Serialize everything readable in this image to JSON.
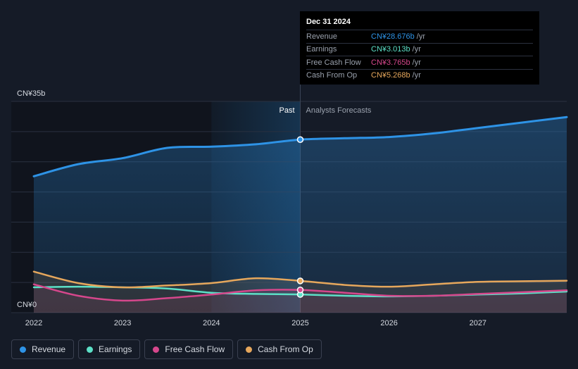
{
  "chart_data": {
    "type": "line",
    "x_ticks": [
      "2022",
      "2023",
      "2024",
      "2025",
      "2026",
      "2027"
    ],
    "xlim": [
      2022,
      2028
    ],
    "ylim": [
      0,
      35
    ],
    "y_top_label": "CN¥35b",
    "y_bottom_label": "CN¥0",
    "past_label": "Past",
    "forecast_label": "Analysts Forecasts",
    "divider_x": 2025.0,
    "highlight_from": 2024.0,
    "series": [
      {
        "name": "Revenue",
        "color": "#2e93e6",
        "fill": true,
        "points": [
          [
            2022.0,
            22.6
          ],
          [
            2022.5,
            24.6
          ],
          [
            2023.0,
            25.6
          ],
          [
            2023.5,
            27.3
          ],
          [
            2024.0,
            27.5
          ],
          [
            2024.5,
            27.9
          ],
          [
            2025.0,
            28.676
          ],
          [
            2025.5,
            28.9
          ],
          [
            2026.0,
            29.1
          ],
          [
            2026.5,
            29.7
          ],
          [
            2027.0,
            30.6
          ],
          [
            2027.5,
            31.5
          ],
          [
            2028.0,
            32.4
          ]
        ]
      },
      {
        "name": "Earnings",
        "color": "#5ce0c7",
        "fill": false,
        "points": [
          [
            2022.0,
            4.2
          ],
          [
            2022.5,
            4.3
          ],
          [
            2023.0,
            4.2
          ],
          [
            2023.5,
            4.0
          ],
          [
            2024.0,
            3.3
          ],
          [
            2024.5,
            3.1
          ],
          [
            2025.0,
            3.013
          ],
          [
            2025.5,
            2.8
          ],
          [
            2026.0,
            2.7
          ],
          [
            2026.5,
            2.8
          ],
          [
            2027.0,
            3.0
          ],
          [
            2027.5,
            3.2
          ],
          [
            2028.0,
            3.5
          ]
        ]
      },
      {
        "name": "Free Cash Flow",
        "color": "#d6478c",
        "fill": true,
        "points": [
          [
            2022.0,
            4.7
          ],
          [
            2022.5,
            2.8
          ],
          [
            2023.0,
            2.0
          ],
          [
            2023.5,
            2.4
          ],
          [
            2024.0,
            3.0
          ],
          [
            2024.5,
            3.7
          ],
          [
            2025.0,
            3.765
          ],
          [
            2025.5,
            3.3
          ],
          [
            2026.0,
            2.8
          ],
          [
            2026.5,
            2.8
          ],
          [
            2027.0,
            3.1
          ],
          [
            2027.5,
            3.4
          ],
          [
            2028.0,
            3.7
          ]
        ]
      },
      {
        "name": "Cash From Op",
        "color": "#e6a75c",
        "fill": true,
        "points": [
          [
            2022.0,
            6.8
          ],
          [
            2022.5,
            4.9
          ],
          [
            2023.0,
            4.2
          ],
          [
            2023.5,
            4.5
          ],
          [
            2024.0,
            4.9
          ],
          [
            2024.5,
            5.7
          ],
          [
            2025.0,
            5.268
          ],
          [
            2025.5,
            4.6
          ],
          [
            2026.0,
            4.3
          ],
          [
            2026.5,
            4.7
          ],
          [
            2027.0,
            5.1
          ],
          [
            2027.5,
            5.2
          ],
          [
            2028.0,
            5.3
          ]
        ]
      }
    ]
  },
  "tooltip": {
    "date": "Dec 31 2024",
    "unit": "/yr",
    "rows": [
      {
        "name": "Revenue",
        "value": "CN¥28.676b",
        "color": "#2e93e6"
      },
      {
        "name": "Earnings",
        "value": "CN¥3.013b",
        "color": "#5ce0c7"
      },
      {
        "name": "Free Cash Flow",
        "value": "CN¥3.765b",
        "color": "#d6478c"
      },
      {
        "name": "Cash From Op",
        "value": "CN¥5.268b",
        "color": "#e6a75c"
      }
    ]
  },
  "legend": [
    {
      "label": "Revenue",
      "color": "#2e93e6"
    },
    {
      "label": "Earnings",
      "color": "#5ce0c7"
    },
    {
      "label": "Free Cash Flow",
      "color": "#d6478c"
    },
    {
      "label": "Cash From Op",
      "color": "#e6a75c"
    }
  ]
}
